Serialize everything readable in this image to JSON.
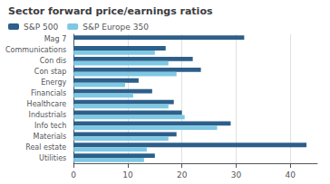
{
  "chart_data": {
    "type": "bar",
    "orientation": "horizontal",
    "title": "Sector forward price/earnings ratios",
    "categories": [
      "Mag 7",
      "Communications",
      "Con dis",
      "Con stap",
      "Energy",
      "Financials",
      "Healthcare",
      "Industrials",
      "Info tech",
      "Materials",
      "Real estate",
      "Utilities"
    ],
    "series": [
      {
        "name": "S&P 500",
        "color": "#2d5f8a",
        "values": [
          31.5,
          17.0,
          22.0,
          23.5,
          12.0,
          14.5,
          18.5,
          20.0,
          29.0,
          19.0,
          43.0,
          15.0
        ]
      },
      {
        "name": "S&P Europe 350",
        "color": "#7ec8e3",
        "values": [
          0,
          15.0,
          17.5,
          19.0,
          9.5,
          11.0,
          17.5,
          20.5,
          26.5,
          17.5,
          13.5,
          13.0
        ]
      }
    ],
    "xlim": [
      0,
      45
    ],
    "xticks": [
      0,
      10,
      20,
      30,
      40
    ],
    "grid": true,
    "legend": "upper left"
  }
}
